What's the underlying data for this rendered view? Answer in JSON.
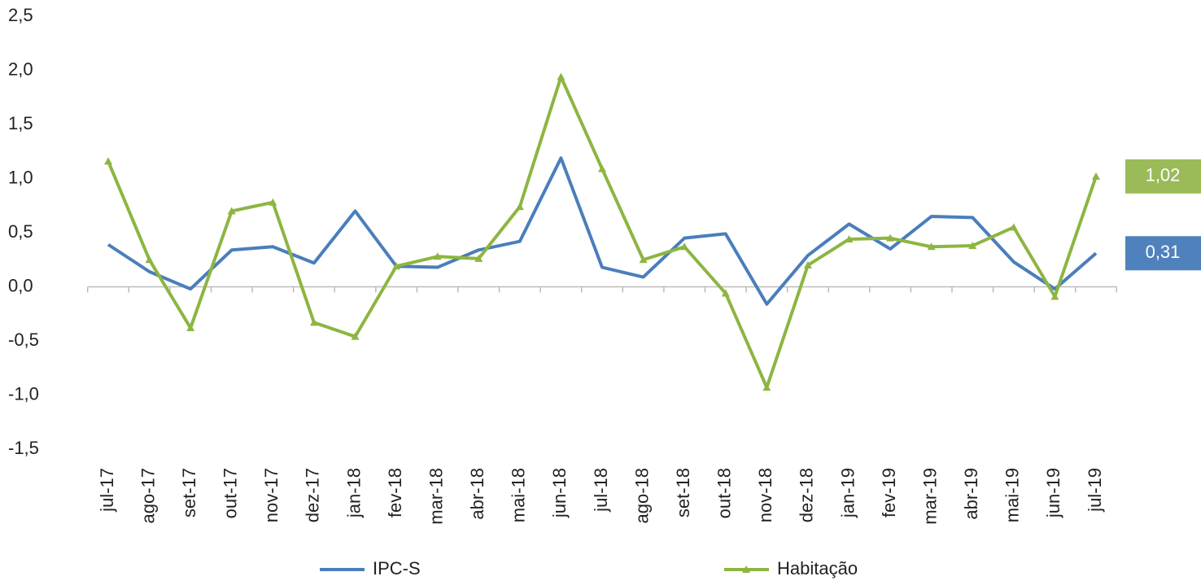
{
  "chart_data": {
    "type": "line",
    "categories": [
      "jul-17",
      "ago-17",
      "set-17",
      "out-17",
      "nov-17",
      "dez-17",
      "jan-18",
      "fev-18",
      "mar-18",
      "abr-18",
      "mai-18",
      "jun-18",
      "jul-18",
      "ago-18",
      "set-18",
      "out-18",
      "nov-18",
      "dez-18",
      "jan-19",
      "fev-19",
      "mar-19",
      "abr-19",
      "mai-19",
      "jun-19",
      "jul-19"
    ],
    "series": [
      {
        "name": "IPC-S",
        "color": "#4a7ebb",
        "label_color": "#4f81bd",
        "values": [
          0.39,
          0.14,
          -0.02,
          0.34,
          0.37,
          0.22,
          0.7,
          0.19,
          0.18,
          0.34,
          0.42,
          1.19,
          0.18,
          0.09,
          0.45,
          0.49,
          -0.16,
          0.29,
          0.58,
          0.35,
          0.65,
          0.64,
          0.23,
          -0.02,
          0.31
        ],
        "value_labels": [
          null,
          null,
          null,
          null,
          null,
          null,
          null,
          null,
          null,
          null,
          null,
          null,
          null,
          null,
          null,
          null,
          null,
          null,
          null,
          null,
          null,
          null,
          null,
          null,
          "0,31"
        ]
      },
      {
        "name": "Habitação",
        "color": "#8db542",
        "label_color": "#9bbb59",
        "marker": "triangle",
        "values": [
          1.16,
          0.25,
          -0.38,
          0.7,
          0.78,
          -0.33,
          -0.46,
          0.19,
          0.28,
          0.26,
          0.74,
          1.94,
          1.09,
          0.25,
          0.37,
          -0.06,
          -0.93,
          0.2,
          0.44,
          0.45,
          0.37,
          0.38,
          0.55,
          -0.09,
          1.02
        ],
        "value_labels": [
          null,
          null,
          null,
          null,
          null,
          null,
          null,
          null,
          null,
          null,
          null,
          null,
          null,
          null,
          null,
          null,
          null,
          null,
          null,
          null,
          null,
          null,
          null,
          null,
          "1,02"
        ]
      }
    ],
    "ylim": [
      -1.5,
      2.5
    ],
    "yticks": [
      {
        "value": -1.5,
        "label": "-1,5"
      },
      {
        "value": -1,
        "label": "-1,0"
      },
      {
        "value": -0.5,
        "label": "-0,5"
      },
      {
        "value": 0,
        "label": "0,0"
      },
      {
        "value": 0.5,
        "label": "0,5"
      },
      {
        "value": 1,
        "label": "1,0"
      },
      {
        "value": 1.5,
        "label": "1,5"
      },
      {
        "value": 2,
        "label": "2,0"
      },
      {
        "value": 2.5,
        "label": "2,5"
      }
    ],
    "grid": false,
    "legend": "bottom"
  }
}
